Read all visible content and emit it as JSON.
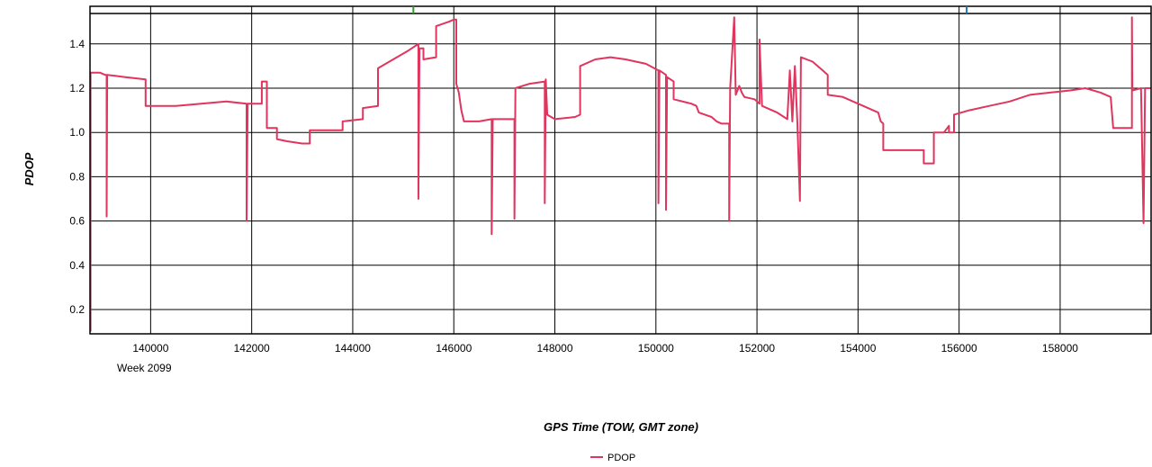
{
  "chart_data": {
    "type": "line",
    "xlabel": "GPS Time (TOW, GMT zone)",
    "ylabel": "PDOP",
    "x_sublabel": "Week 2099",
    "xlim": [
      138800,
      159800
    ],
    "ylim": [
      0.09,
      1.57
    ],
    "x_ticks": [
      140000,
      142000,
      144000,
      146000,
      148000,
      150000,
      152000,
      154000,
      156000,
      158000
    ],
    "y_ticks": [
      0.2,
      0.4,
      0.6,
      0.8,
      1.0,
      1.2,
      1.4
    ],
    "grid": true,
    "legend_position": "bottom-center",
    "top_markers": [
      {
        "x": 145200,
        "color": "#2ca02c"
      },
      {
        "x": 156150,
        "color": "#1f77b4"
      }
    ],
    "series": [
      {
        "name": "PDOP",
        "color": "#e0355e",
        "points": [
          [
            138810,
            0.1
          ],
          [
            138810,
            1.27
          ],
          [
            139000,
            1.27
          ],
          [
            139100,
            1.26
          ],
          [
            139130,
            1.26
          ],
          [
            139130,
            0.62
          ],
          [
            139140,
            1.26
          ],
          [
            139500,
            1.25
          ],
          [
            139900,
            1.24
          ],
          [
            139900,
            1.12
          ],
          [
            140500,
            1.12
          ],
          [
            141000,
            1.13
          ],
          [
            141500,
            1.14
          ],
          [
            141900,
            1.13
          ],
          [
            141900,
            0.6
          ],
          [
            141920,
            1.13
          ],
          [
            142200,
            1.13
          ],
          [
            142200,
            1.23
          ],
          [
            142300,
            1.23
          ],
          [
            142300,
            1.02
          ],
          [
            142500,
            1.02
          ],
          [
            142500,
            0.97
          ],
          [
            142700,
            0.96
          ],
          [
            143000,
            0.95
          ],
          [
            143150,
            0.95
          ],
          [
            143150,
            1.01
          ],
          [
            143500,
            1.01
          ],
          [
            143800,
            1.01
          ],
          [
            143800,
            1.05
          ],
          [
            144200,
            1.06
          ],
          [
            144200,
            1.11
          ],
          [
            144500,
            1.12
          ],
          [
            144500,
            1.29
          ],
          [
            144800,
            1.33
          ],
          [
            145100,
            1.37
          ],
          [
            145300,
            1.4
          ],
          [
            145300,
            0.7
          ],
          [
            145320,
            1.38
          ],
          [
            145400,
            1.38
          ],
          [
            145400,
            1.33
          ],
          [
            145650,
            1.34
          ],
          [
            145650,
            1.48
          ],
          [
            145900,
            1.5
          ],
          [
            146000,
            1.51
          ],
          [
            146050,
            1.51
          ],
          [
            146050,
            1.22
          ],
          [
            146100,
            1.18
          ],
          [
            146150,
            1.1
          ],
          [
            146200,
            1.05
          ],
          [
            146500,
            1.05
          ],
          [
            146750,
            1.06
          ],
          [
            146750,
            0.54
          ],
          [
            146770,
            1.06
          ],
          [
            147150,
            1.06
          ],
          [
            147200,
            1.06
          ],
          [
            147200,
            0.61
          ],
          [
            147220,
            1.2
          ],
          [
            147500,
            1.22
          ],
          [
            147800,
            1.23
          ],
          [
            147800,
            0.68
          ],
          [
            147820,
            1.24
          ],
          [
            147850,
            1.08
          ],
          [
            148000,
            1.06
          ],
          [
            148400,
            1.07
          ],
          [
            148500,
            1.08
          ],
          [
            148500,
            1.3
          ],
          [
            148800,
            1.33
          ],
          [
            149100,
            1.34
          ],
          [
            149400,
            1.33
          ],
          [
            149800,
            1.31
          ],
          [
            150050,
            1.28
          ],
          [
            150050,
            0.68
          ],
          [
            150070,
            1.28
          ],
          [
            150200,
            1.26
          ],
          [
            150200,
            0.65
          ],
          [
            150220,
            1.25
          ],
          [
            150350,
            1.23
          ],
          [
            150350,
            1.15
          ],
          [
            150700,
            1.13
          ],
          [
            150800,
            1.12
          ],
          [
            150850,
            1.09
          ],
          [
            151100,
            1.07
          ],
          [
            151200,
            1.05
          ],
          [
            151300,
            1.04
          ],
          [
            151450,
            1.04
          ],
          [
            151450,
            0.6
          ],
          [
            151470,
            1.2
          ],
          [
            151550,
            1.52
          ],
          [
            151580,
            1.17
          ],
          [
            151650,
            1.21
          ],
          [
            151700,
            1.18
          ],
          [
            151750,
            1.16
          ],
          [
            151950,
            1.15
          ],
          [
            152050,
            1.13
          ],
          [
            152050,
            1.42
          ],
          [
            152100,
            1.12
          ],
          [
            152400,
            1.09
          ],
          [
            152600,
            1.06
          ],
          [
            152650,
            1.28
          ],
          [
            152700,
            1.05
          ],
          [
            152750,
            1.3
          ],
          [
            152800,
            1.04
          ],
          [
            152850,
            0.69
          ],
          [
            152870,
            1.34
          ],
          [
            153100,
            1.32
          ],
          [
            153300,
            1.28
          ],
          [
            153400,
            1.26
          ],
          [
            153400,
            1.17
          ],
          [
            153700,
            1.16
          ],
          [
            154100,
            1.12
          ],
          [
            154400,
            1.09
          ],
          [
            154450,
            1.05
          ],
          [
            154500,
            1.04
          ],
          [
            154500,
            0.92
          ],
          [
            154800,
            0.92
          ],
          [
            155200,
            0.92
          ],
          [
            155300,
            0.92
          ],
          [
            155300,
            0.86
          ],
          [
            155500,
            0.86
          ],
          [
            155500,
            1.0
          ],
          [
            155700,
            1.0
          ],
          [
            155800,
            1.03
          ],
          [
            155800,
            1.0
          ],
          [
            155900,
            1.0
          ],
          [
            155900,
            1.08
          ],
          [
            156200,
            1.1
          ],
          [
            156600,
            1.12
          ],
          [
            157000,
            1.14
          ],
          [
            157400,
            1.17
          ],
          [
            157800,
            1.18
          ],
          [
            158200,
            1.19
          ],
          [
            158500,
            1.2
          ],
          [
            158800,
            1.18
          ],
          [
            159000,
            1.16
          ],
          [
            159050,
            1.02
          ],
          [
            159300,
            1.02
          ],
          [
            159420,
            1.02
          ],
          [
            159420,
            1.52
          ],
          [
            159430,
            1.19
          ],
          [
            159600,
            1.2
          ],
          [
            159650,
            0.59
          ],
          [
            159680,
            1.2
          ],
          [
            159800,
            1.2
          ]
        ]
      }
    ]
  }
}
